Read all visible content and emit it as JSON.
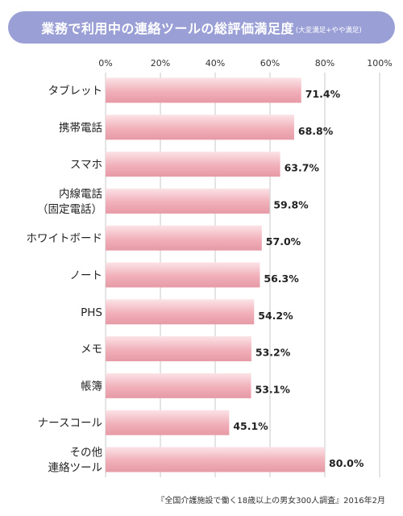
{
  "title": {
    "main": "業務で利用中の連絡ツールの総評価満足度",
    "sub": "(大変満足+やや満足)"
  },
  "source_note": "『全国介護施設で働く18歳以上の男女300人調査』2016年2月",
  "colors": {
    "title_bg": "#9a9fd6",
    "bar_light": "#fbe3e6",
    "bar_mid": "#f1b0ba",
    "bar_dark": "#e69aa5",
    "grid": "#c8c8c8"
  },
  "chart_data": {
    "type": "bar",
    "orientation": "horizontal",
    "categories": [
      [
        "タブレット"
      ],
      [
        "携帯電話"
      ],
      [
        "スマホ"
      ],
      [
        "内線電話",
        "（固定電話）"
      ],
      [
        "ホワイトボード"
      ],
      [
        "ノート"
      ],
      [
        "PHS"
      ],
      [
        "メモ"
      ],
      [
        "帳簿"
      ],
      [
        "ナースコール"
      ],
      [
        "その他",
        "連絡ツール"
      ]
    ],
    "values": [
      71.4,
      68.8,
      63.7,
      59.8,
      57.0,
      56.3,
      54.2,
      53.2,
      53.1,
      45.1,
      80.0
    ],
    "value_labels": [
      "71.4%",
      "68.8%",
      "63.7%",
      "59.8%",
      "57.0%",
      "56.3%",
      "54.2%",
      "53.2%",
      "53.1%",
      "45.1%",
      "80.0%"
    ],
    "xlim": [
      0,
      100
    ],
    "xticks": [
      0,
      20,
      40,
      60,
      80,
      100
    ],
    "xtick_labels": [
      "0%",
      "20%",
      "40%",
      "60%",
      "80%",
      "100%"
    ],
    "grid": true,
    "xlabel": "",
    "ylabel": ""
  }
}
